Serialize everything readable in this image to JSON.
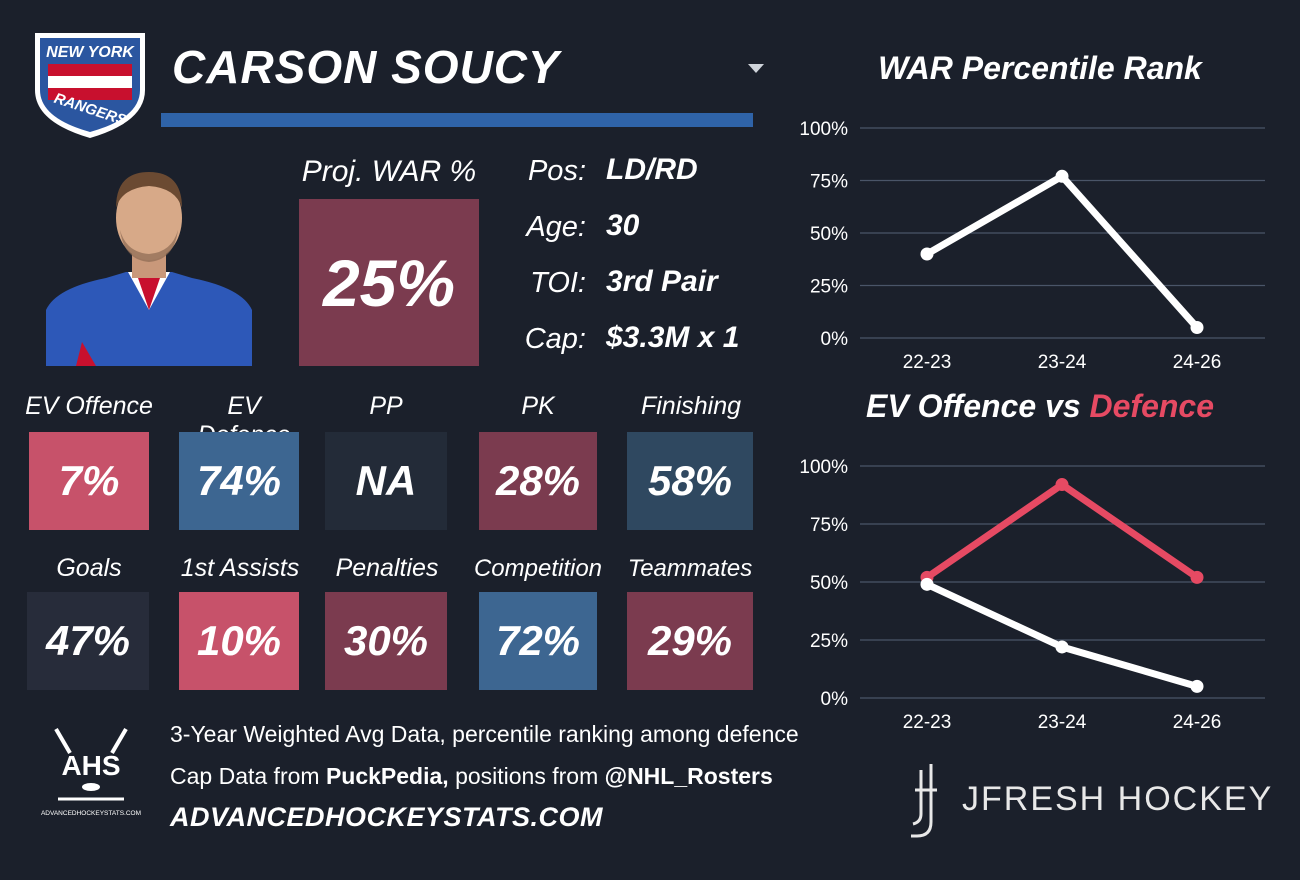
{
  "player": {
    "name": "CARSON SOUCY"
  },
  "team_logo_text": [
    "NEW YORK",
    "RANGERS"
  ],
  "proj": {
    "label": "Proj. WAR %",
    "value": "25%"
  },
  "info": [
    {
      "label": "Pos:",
      "value": "LD/RD"
    },
    {
      "label": "Age:",
      "value": "30"
    },
    {
      "label": "TOI:",
      "value": "3rd Pair"
    },
    {
      "label": "Cap:",
      "value": "$3.3M x 1"
    }
  ],
  "stats_row1": [
    {
      "label": "EV Offence",
      "value": "7%",
      "color": "#c7526a"
    },
    {
      "label": "EV Defence",
      "value": "74%",
      "color": "#3d6691"
    },
    {
      "label": "PP",
      "value": "NA",
      "color": "#232b38"
    },
    {
      "label": "PK",
      "value": "28%",
      "color": "#7b3b4f"
    },
    {
      "label": "Finishing",
      "value": "58%",
      "color": "#2f4860"
    }
  ],
  "stats_row2": [
    {
      "label": "Goals",
      "value": "47%",
      "color": "#272c3a"
    },
    {
      "label": "1st Assists",
      "value": "10%",
      "color": "#c7526a"
    },
    {
      "label": "Penalties",
      "value": "30%",
      "color": "#7b3b4f"
    },
    {
      "label": "Competition",
      "value": "72%",
      "color": "#3d6691"
    },
    {
      "label": "Teammates",
      "value": "29%",
      "color": "#7b3b4f"
    }
  ],
  "footer": {
    "line1": "3-Year Weighted Avg Data, percentile ranking among defence",
    "line2_pre": "Cap Data from ",
    "line2_bold1": "PuckPedia,",
    "line2_mid": " positions from ",
    "line2_bold2": "@NHL_Rosters",
    "url": "ADVANCEDHOCKEYSTATS.COM",
    "ahs_logo_text": "AHS",
    "ahs_logo_sub": "ADVANCEDHOCKEYSTATS.COM",
    "jfresh": "JFRESH HOCKEY"
  },
  "chart_data": [
    {
      "type": "line",
      "title": "WAR Percentile Rank",
      "categories": [
        "22-23",
        "23-24",
        "24-26"
      ],
      "series": [
        {
          "values": [
            40,
            77,
            5
          ],
          "color": "#ffffff"
        }
      ],
      "ylim": [
        0,
        100
      ],
      "yticks": [
        "0%",
        "25%",
        "50%",
        "75%",
        "100%"
      ],
      "grid": true
    },
    {
      "type": "line",
      "title_parts": [
        "EV Offence vs ",
        "Defence"
      ],
      "title_colors": [
        "#ffffff",
        "#e64a63"
      ],
      "categories": [
        "22-23",
        "23-24",
        "24-26"
      ],
      "series": [
        {
          "values": [
            52,
            92,
            52
          ],
          "color": "#e64a63"
        },
        {
          "values": [
            49,
            22,
            5
          ],
          "color": "#ffffff"
        }
      ],
      "ylim": [
        0,
        100
      ],
      "yticks": [
        "0%",
        "25%",
        "50%",
        "75%",
        "100%"
      ],
      "grid": true
    }
  ]
}
